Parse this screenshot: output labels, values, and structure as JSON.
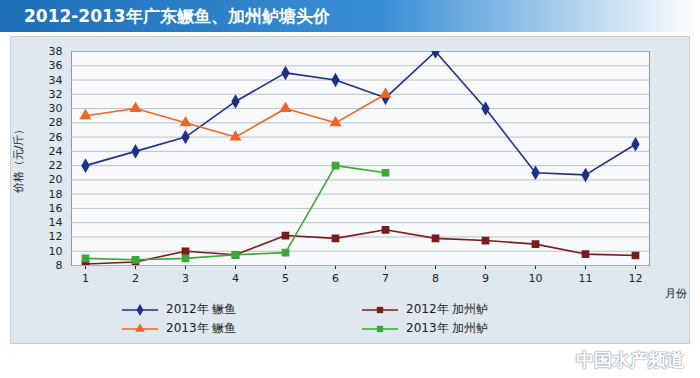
{
  "chart_data": {
    "type": "line",
    "title": "2012-2013年广东鳜鱼、加州鲈塘头价",
    "x_label": "月份",
    "y_label": "价格（元/斤）",
    "categories": [
      "1",
      "2",
      "3",
      "4",
      "5",
      "6",
      "7",
      "8",
      "9",
      "10",
      "11",
      "12"
    ],
    "series": [
      {
        "name": "2012年 鳜鱼",
        "color": "#1f2f8f",
        "marker": "diamond",
        "line_style": "solid",
        "values": [
          22,
          24,
          26,
          31,
          35,
          34,
          31.5,
          38,
          30,
          21,
          20.7,
          25
        ]
      },
      {
        "name": "2012年 加州鲈",
        "color": "#7a1c1c",
        "marker": "square",
        "line_style": "solid",
        "values": [
          8.2,
          8.5,
          10,
          9.5,
          12.2,
          11.8,
          13,
          11.8,
          11.5,
          11,
          9.6,
          9.4
        ]
      },
      {
        "name": "2013年 鳜鱼",
        "color": "#f26522",
        "marker": "triangle",
        "line_style": "solid",
        "values": [
          29,
          30,
          28,
          26,
          30,
          28,
          32,
          null,
          null,
          null,
          null,
          null
        ]
      },
      {
        "name": "2013年 加州鲈",
        "color": "#3aaa35",
        "marker": "square",
        "line_style": "solid",
        "values": [
          9,
          8.8,
          9,
          9.5,
          9.8,
          22,
          21,
          null,
          null,
          null,
          null,
          null
        ]
      }
    ],
    "ylim": [
      8,
      38
    ],
    "yticks": [
      8,
      10,
      12,
      14,
      16,
      18,
      20,
      22,
      24,
      26,
      28,
      30,
      32,
      34,
      36,
      38
    ],
    "grid": true,
    "legend": "bottom",
    "annotations": [
      "中国水产频道"
    ]
  }
}
